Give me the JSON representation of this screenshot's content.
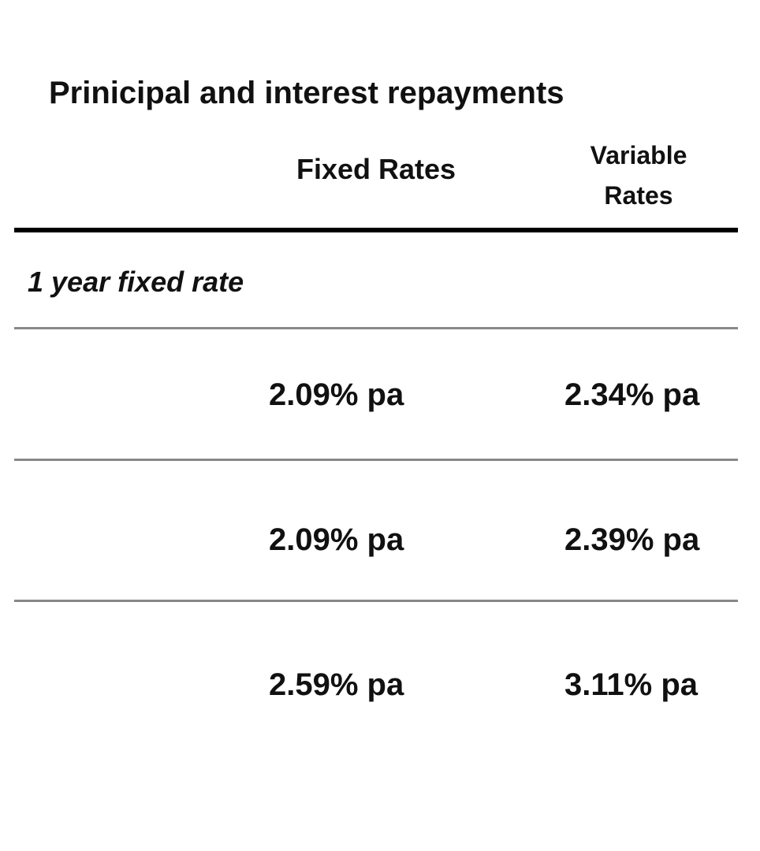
{
  "header": {
    "title": "Prinicipal and interest repayments"
  },
  "table": {
    "columns": [
      "Fixed Rates",
      "Variable Rates"
    ],
    "section": "1 year fixed rate",
    "rows": [
      [
        "2.09% pa",
        "2.34% pa"
      ],
      [
        "2.09% pa",
        "2.39% pa"
      ],
      [
        "2.59% pa",
        "3.11% pa"
      ]
    ]
  }
}
